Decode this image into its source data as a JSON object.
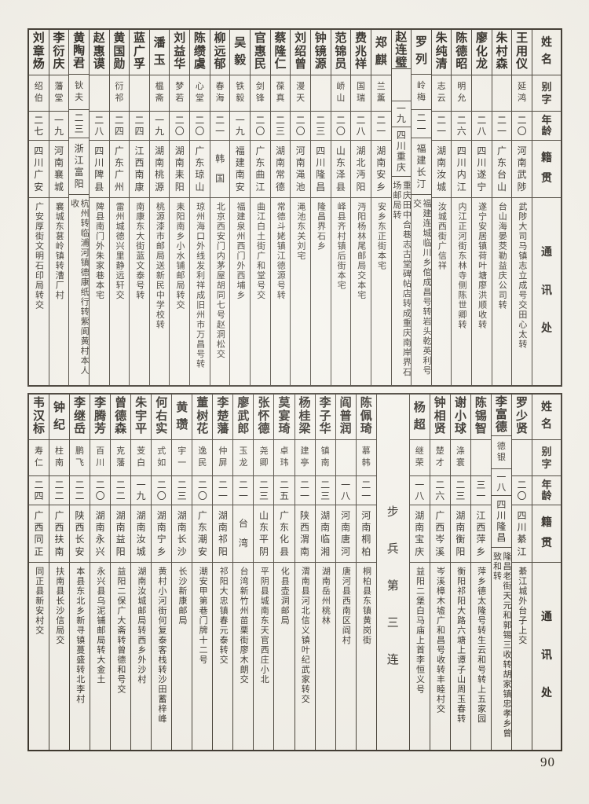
{
  "page": {
    "number": "90"
  },
  "header_labels": {
    "name": "姓名",
    "zi": "别字",
    "age": "年龄",
    "native": "籍贯",
    "address": "通讯处"
  },
  "tables": [
    {
      "unit": null,
      "unit_before_entry": -1,
      "entries": [
        {
          "name": "王用仪",
          "zi": "延鸿",
          "age": "二〇",
          "native": "河南武陟",
          "address": "武陟大司马镇志立成号交田心太转"
        },
        {
          "name": "朱村森",
          "zi": "",
          "age": "二一",
          "native": "广东台山",
          "address": "台山海晏茭勒益庆公司转"
        },
        {
          "name": "廖化龙",
          "zi": "",
          "age": "二八",
          "native": "四川遂宁",
          "address": "遂宁安居镇荷叶塘廖洪顺收转"
        },
        {
          "name": "陈德昭",
          "zi": "明允",
          "age": "二六",
          "native": "四川内江",
          "address": "内江正河街东林寺侧陈世卿转"
        },
        {
          "name": "朱纯清",
          "zi": "志云",
          "age": "二一",
          "native": "湖南汝城",
          "address": "汝城西街广信祥"
        },
        {
          "name": "罗列",
          "zi": "岭梅",
          "age": "二一",
          "native": "福建长汀",
          "address": "福建连城临川乡倌成昌号转岩头乾英利号交"
        },
        {
          "name": "赵连璧",
          "zi": "",
          "age": "一九",
          "native": "四川重庆",
          "address": "重庆田中合巷志古堂碑帖店转成重庆南岸界石场邮局转"
        },
        {
          "name": "郑麒",
          "zi": "兰薰",
          "age": "二一",
          "native": "湖南安乡",
          "address": "安乡东正街本宅"
        },
        {
          "name": "费兆祥",
          "zi": "国瑞",
          "age": "二八",
          "native": "湖北沔阳",
          "address": "沔阳杨林尾邮局交本宅"
        },
        {
          "name": "范锦员",
          "zi": "峤山",
          "age": "二〇",
          "native": "山东泽县",
          "address": "峄县齐村镇后街本宅"
        },
        {
          "name": "钟镜源",
          "zi": "",
          "age": "二三",
          "native": "四川隆昌",
          "address": "隆昌界石乡"
        },
        {
          "name": "刘绍曾",
          "zi": "漫天",
          "age": "二〇",
          "native": "河南渑池",
          "address": "渑池东关刘宅"
        },
        {
          "name": "蔡隆仁",
          "zi": "葆真",
          "age": "二三",
          "native": "湖南常德",
          "address": "常德斗姥镇江德源号转"
        },
        {
          "name": "官惠民",
          "zi": "剑锋",
          "age": "二〇",
          "native": "广东曲江",
          "address": "曲江白土街广和堂号交"
        },
        {
          "name": "吴毅",
          "zi": "铁毅",
          "age": "一九",
          "native": "福建南安",
          "address": "福建泉州西门外西埔乡"
        },
        {
          "name": "柳远郁",
          "zi": "春海",
          "age": "二一",
          "native": "韩国",
          "address": "北京西安门内茅屋胡同七号赵洞松交"
        },
        {
          "name": "陈缵虞",
          "zi": "心堂",
          "age": "二〇",
          "native": "广东琼山",
          "address": "琼州海口外线发利祥成旧州市万昌号转"
        },
        {
          "name": "刘益华",
          "zi": "梦若",
          "age": "二〇",
          "native": "湖南耒阳",
          "address": "耒阳南乡小水铺邮局转交"
        },
        {
          "name": "潘玉",
          "zi": "榅斋",
          "age": "一九",
          "native": "湖南桃源",
          "address": "桃源漆市邮局送新民中学校转"
        },
        {
          "name": "蓝广孚",
          "zi": "",
          "age": "二四",
          "native": "江西南康",
          "address": "南康东大街蓝文泰号转"
        },
        {
          "name": "黄国勋",
          "zi": "衍祁",
          "age": "二四",
          "native": "广东广州",
          "address": "雷州城德兴里静远轩交"
        },
        {
          "name": "赵惠谟",
          "zi": "",
          "age": "二八",
          "native": "四川陴县",
          "address": "陴县南门外朱家巷本宅"
        },
        {
          "name": "黄陶君",
          "zi": "钬夫",
          "age": "二三",
          "native": "浙江富阳",
          "address": "杭州转临浦河镇德康纸行转紫阆黄村本人收"
        },
        {
          "name": "李衍庆",
          "zi": "藩堂",
          "age": "一九",
          "native": "河南襄城",
          "address": "襄城东葚岭镇转漕厂村"
        },
        {
          "name": "刘章炀",
          "zi": "绍伯",
          "age": "二七",
          "native": "四川广安",
          "address": "广安厚街文明石印局转交"
        }
      ]
    },
    {
      "unit": "步兵第三连",
      "unit_before_entry": 6,
      "entries": [
        {
          "name": "罗少贤",
          "zi": "",
          "age": "二〇",
          "native": "四川綦江",
          "address": "綦江城外台子上交"
        },
        {
          "name": "李富德",
          "zi": "德银",
          "age": "一八",
          "native": "四川隆昌",
          "address": "隆昌老街天元和郭锡三收转胡家镇忠孝乡曾致和转"
        },
        {
          "name": "陈锡智",
          "zi": "",
          "age": "三一",
          "native": "江西萍乡",
          "address": "萍乡德太隆号转生云和号转上五家园"
        },
        {
          "name": "谢小球",
          "zi": "涤寰",
          "age": "二三",
          "native": "湖南衡阳",
          "address": "衡阳祁阳大路六塘上谭子山周玉春转"
        },
        {
          "name": "钟相贤",
          "zi": "楚才",
          "age": "二六",
          "native": "广西岑溪",
          "address": "岑溪樟木墟广和昌号收转丰睦村交"
        },
        {
          "name": "杨超",
          "zi": "继荣",
          "age": "一八",
          "native": "湖南宝庆",
          "address": "益阳二堡白马庙上首李恒义号"
        },
        {
          "name": "陈佩琦",
          "zi": "慕韩",
          "age": "二一",
          "native": "河南桐柏",
          "address": "桐柏县东镇黄岗街"
        },
        {
          "name": "阎普润",
          "zi": "",
          "age": "一八",
          "native": "河南唐河",
          "address": "唐河县西南区阎村"
        },
        {
          "name": "李子华",
          "zi": "镇南",
          "age": "二三",
          "native": "湖南临湘",
          "address": "湖南岳州桃林"
        },
        {
          "name": "杨桂梁",
          "zi": "建亭",
          "age": "二一",
          "native": "陕西渭南",
          "address": "渭南县河北信义镇叶纪武家转交"
        },
        {
          "name": "莫宴琦",
          "zi": "卓玮",
          "age": "二五",
          "native": "广东化县",
          "address": "化县壶洞邮局"
        },
        {
          "name": "张怀德",
          "zi": "尧卿",
          "age": "二三",
          "native": "山东平阴",
          "address": "平阴县城南东天官西庄小北"
        },
        {
          "name": "廖武郎",
          "zi": "玉龙",
          "age": "二一",
          "native": "台湾",
          "address": "台湾新竹州苗栗街廖木朗交"
        },
        {
          "name": "李楚藩",
          "zi": "仲屏",
          "age": "二一",
          "native": "湖南祁阳",
          "address": "祁阳大忠镇春元泰转交"
        },
        {
          "name": "董树花",
          "zi": "逸民",
          "age": "二〇",
          "native": "广东潮安",
          "address": "潮安甲第巷门牌十二号"
        },
        {
          "name": "黄瓒",
          "zi": "宇一",
          "age": "二三",
          "native": "湖南长沙",
          "address": "长沙新康邮局"
        },
        {
          "name": "何右实",
          "zi": "式如",
          "age": "二〇",
          "native": "湖南宁乡",
          "address": "黄村小河街何复泰客栈转沙田蓄梓峰"
        },
        {
          "name": "朱宇平",
          "zi": "芰白",
          "age": "一九",
          "native": "湖南汝城",
          "address": "湖南汝城邮局转西乡外沙村"
        },
        {
          "name": "曾德森",
          "zi": "克藩",
          "age": "二二",
          "native": "湖南益阳",
          "address": "益阳二保广大斋转曾德和号交"
        },
        {
          "name": "李腾芳",
          "zi": "百川",
          "age": "二〇",
          "native": "湖南永兴",
          "address": "永兴县乌泥铺邮局转大金土"
        },
        {
          "name": "李继岳",
          "zi": "鹏飞",
          "age": "二二",
          "native": "陕西长安",
          "address": "本县东北乡新寻镇蔓盛转北李村"
        },
        {
          "name": "钟纪",
          "zi": "柱南",
          "age": "二二",
          "native": "广西扶南",
          "address": "扶南县长沙信局交"
        },
        {
          "name": "韦汉标",
          "zi": "寿仁",
          "age": "二四",
          "native": "广西同正",
          "address": "同正县新安村交"
        }
      ]
    }
  ]
}
